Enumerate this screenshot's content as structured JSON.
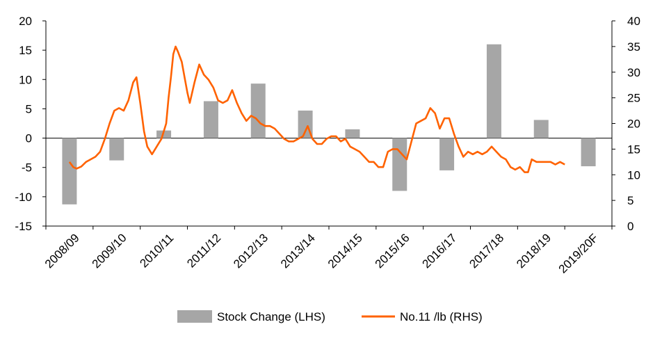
{
  "chart_data": {
    "type": "bar+line",
    "categories": [
      "2008/09",
      "2009/10",
      "2010/11",
      "2011/12",
      "2012/13",
      "2013/14",
      "2014/15",
      "2015/16",
      "2016/17",
      "2017/18",
      "2018/19",
      "2019/20F"
    ],
    "series": [
      {
        "name": "Stock Change (LHS)",
        "type": "bar",
        "axis": "left",
        "color": "#a6a6a6",
        "values": [
          -11.3,
          -3.8,
          1.3,
          6.3,
          9.3,
          4.7,
          1.5,
          -9.0,
          -5.5,
          16.0,
          3.1,
          -4.8
        ]
      },
      {
        "name": "No.11 /lb (RHS)",
        "type": "line",
        "axis": "right",
        "color": "#ff6200",
        "points": [
          [
            0.0,
            12.5
          ],
          [
            0.08,
            11.5
          ],
          [
            0.15,
            11.2
          ],
          [
            0.25,
            11.6
          ],
          [
            0.35,
            12.5
          ],
          [
            0.45,
            13.0
          ],
          [
            0.55,
            13.5
          ],
          [
            0.65,
            14.5
          ],
          [
            0.75,
            17.0
          ],
          [
            0.85,
            20.0
          ],
          [
            0.95,
            22.5
          ],
          [
            1.05,
            23.0
          ],
          [
            1.15,
            22.5
          ],
          [
            1.25,
            24.5
          ],
          [
            1.35,
            28.0
          ],
          [
            1.42,
            29.0
          ],
          [
            1.5,
            24.0
          ],
          [
            1.58,
            18.5
          ],
          [
            1.65,
            15.5
          ],
          [
            1.75,
            14.0
          ],
          [
            1.85,
            15.5
          ],
          [
            1.95,
            17.0
          ],
          [
            2.05,
            20.0
          ],
          [
            2.1,
            25.0
          ],
          [
            2.15,
            29.0
          ],
          [
            2.2,
            33.5
          ],
          [
            2.25,
            35.0
          ],
          [
            2.3,
            34.0
          ],
          [
            2.38,
            32.0
          ],
          [
            2.45,
            28.5
          ],
          [
            2.5,
            26.0
          ],
          [
            2.55,
            24.0
          ],
          [
            2.65,
            28.0
          ],
          [
            2.75,
            31.5
          ],
          [
            2.85,
            29.5
          ],
          [
            2.95,
            28.5
          ],
          [
            3.05,
            27.0
          ],
          [
            3.15,
            24.5
          ],
          [
            3.25,
            24.0
          ],
          [
            3.35,
            24.5
          ],
          [
            3.45,
            26.5
          ],
          [
            3.55,
            24.0
          ],
          [
            3.65,
            22.0
          ],
          [
            3.75,
            20.5
          ],
          [
            3.85,
            21.5
          ],
          [
            3.95,
            21.0
          ],
          [
            4.05,
            20.0
          ],
          [
            4.15,
            19.5
          ],
          [
            4.25,
            19.5
          ],
          [
            4.35,
            19.0
          ],
          [
            4.45,
            18.0
          ],
          [
            4.55,
            17.0
          ],
          [
            4.65,
            16.5
          ],
          [
            4.75,
            16.5
          ],
          [
            4.85,
            17.0
          ],
          [
            4.95,
            17.5
          ],
          [
            5.05,
            19.5
          ],
          [
            5.15,
            17.0
          ],
          [
            5.25,
            16.0
          ],
          [
            5.35,
            16.0
          ],
          [
            5.45,
            17.0
          ],
          [
            5.55,
            17.5
          ],
          [
            5.65,
            17.5
          ],
          [
            5.75,
            16.5
          ],
          [
            5.85,
            17.0
          ],
          [
            5.95,
            15.5
          ],
          [
            6.05,
            15.0
          ],
          [
            6.15,
            14.5
          ],
          [
            6.25,
            13.5
          ],
          [
            6.35,
            12.5
          ],
          [
            6.45,
            12.5
          ],
          [
            6.55,
            11.5
          ],
          [
            6.65,
            11.5
          ],
          [
            6.75,
            14.5
          ],
          [
            6.85,
            15.0
          ],
          [
            6.95,
            15.0
          ],
          [
            7.05,
            14.0
          ],
          [
            7.15,
            13.0
          ],
          [
            7.25,
            16.5
          ],
          [
            7.35,
            20.0
          ],
          [
            7.45,
            20.5
          ],
          [
            7.55,
            21.0
          ],
          [
            7.65,
            23.0
          ],
          [
            7.75,
            22.0
          ],
          [
            7.85,
            19.0
          ],
          [
            7.95,
            21.0
          ],
          [
            8.05,
            21.0
          ],
          [
            8.15,
            18.0
          ],
          [
            8.25,
            15.5
          ],
          [
            8.35,
            13.5
          ],
          [
            8.45,
            14.5
          ],
          [
            8.55,
            14.0
          ],
          [
            8.65,
            14.5
          ],
          [
            8.75,
            14.0
          ],
          [
            8.85,
            14.5
          ],
          [
            8.95,
            15.5
          ],
          [
            9.05,
            14.5
          ],
          [
            9.15,
            13.5
          ],
          [
            9.25,
            13.0
          ],
          [
            9.35,
            11.5
          ],
          [
            9.45,
            11.0
          ],
          [
            9.55,
            11.5
          ],
          [
            9.65,
            10.5
          ],
          [
            9.72,
            10.5
          ],
          [
            9.8,
            13.0
          ],
          [
            9.9,
            12.5
          ],
          [
            10.0,
            12.5
          ],
          [
            10.1,
            12.5
          ],
          [
            10.2,
            12.5
          ],
          [
            10.3,
            12.0
          ],
          [
            10.4,
            12.5
          ],
          [
            10.5,
            12.0
          ]
        ]
      }
    ],
    "y_left": {
      "ylim": [
        -15,
        20
      ],
      "ticks": [
        "20",
        "15",
        "10",
        "5",
        "0",
        "-5",
        "-10",
        "-15"
      ]
    },
    "y_right": {
      "ylim": [
        0,
        40
      ],
      "ticks": [
        "40",
        "35",
        "30",
        "25",
        "20",
        "15",
        "10",
        "5",
        "0"
      ]
    },
    "grid": false,
    "legend_position": "bottom",
    "title": "",
    "xlabel": "",
    "ylabel": ""
  }
}
